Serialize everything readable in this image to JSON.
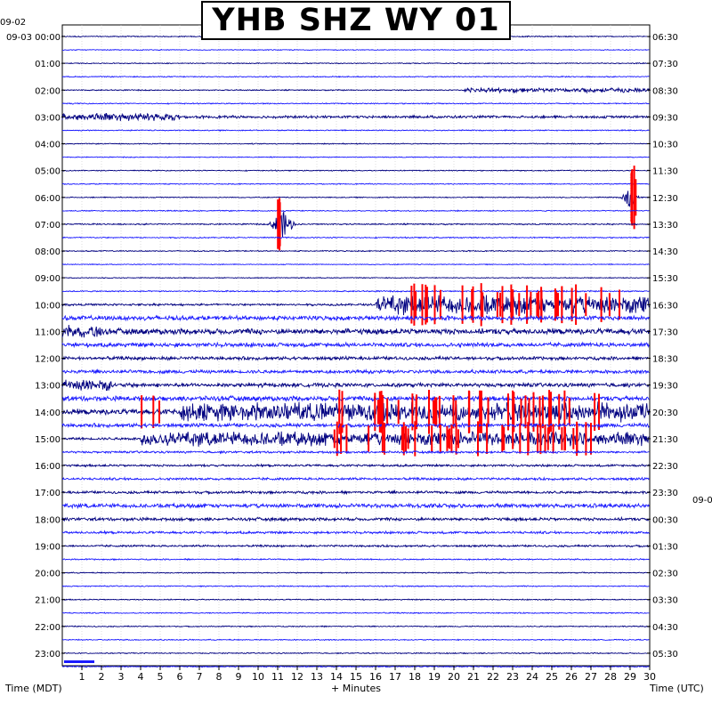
{
  "station_title": "YHB SHZ WY 01",
  "labels": {
    "left_start_date": "09-02",
    "right_next_date": "09-0",
    "x_axis_left": "Time (MDT)",
    "x_axis_center": "+ Minutes",
    "x_axis_right": "Time (UTC)"
  },
  "colors": {
    "trace_dark": "#000080",
    "trace_blue": "#1a1aff",
    "clipped": "#ff0000",
    "frame": "#000000",
    "background": "#ffffff"
  },
  "chart_data": {
    "type": "line",
    "title": "YHB SHZ WY 01",
    "xlabel": "+ Minutes",
    "ylabel_left": "Time (MDT)",
    "ylabel_right": "Time (UTC)",
    "xlim": [
      0,
      30
    ],
    "x_ticks": [
      1,
      2,
      3,
      4,
      5,
      6,
      7,
      8,
      9,
      10,
      11,
      12,
      13,
      14,
      15,
      16,
      17,
      18,
      19,
      20,
      21,
      22,
      23,
      24,
      25,
      26,
      27,
      28,
      29,
      30
    ],
    "left_ticks": [
      {
        "row": 0,
        "label": "09-03 00:00"
      },
      {
        "row": 2,
        "label": "01:00"
      },
      {
        "row": 4,
        "label": "02:00"
      },
      {
        "row": 6,
        "label": "03:00"
      },
      {
        "row": 8,
        "label": "04:00"
      },
      {
        "row": 10,
        "label": "05:00"
      },
      {
        "row": 12,
        "label": "06:00"
      },
      {
        "row": 14,
        "label": "07:00"
      },
      {
        "row": 16,
        "label": "08:00"
      },
      {
        "row": 18,
        "label": "09:00"
      },
      {
        "row": 20,
        "label": "10:00"
      },
      {
        "row": 22,
        "label": "11:00"
      },
      {
        "row": 24,
        "label": "12:00"
      },
      {
        "row": 26,
        "label": "13:00"
      },
      {
        "row": 28,
        "label": "14:00"
      },
      {
        "row": 30,
        "label": "15:00"
      },
      {
        "row": 32,
        "label": "16:00"
      },
      {
        "row": 34,
        "label": "17:00"
      },
      {
        "row": 36,
        "label": "18:00"
      },
      {
        "row": 38,
        "label": "19:00"
      },
      {
        "row": 40,
        "label": "20:00"
      },
      {
        "row": 42,
        "label": "21:00"
      },
      {
        "row": 44,
        "label": "22:00"
      },
      {
        "row": 46,
        "label": "23:00"
      }
    ],
    "right_ticks": [
      {
        "row": 0,
        "label": "06:30"
      },
      {
        "row": 2,
        "label": "07:30"
      },
      {
        "row": 4,
        "label": "08:30"
      },
      {
        "row": 6,
        "label": "09:30"
      },
      {
        "row": 8,
        "label": "10:30"
      },
      {
        "row": 10,
        "label": "11:30"
      },
      {
        "row": 12,
        "label": "12:30"
      },
      {
        "row": 14,
        "label": "13:30"
      },
      {
        "row": 16,
        "label": "14:30"
      },
      {
        "row": 18,
        "label": "15:30"
      },
      {
        "row": 20,
        "label": "16:30"
      },
      {
        "row": 22,
        "label": "17:30"
      },
      {
        "row": 24,
        "label": "18:30"
      },
      {
        "row": 26,
        "label": "19:30"
      },
      {
        "row": 28,
        "label": "20:30"
      },
      {
        "row": 30,
        "label": "21:30"
      },
      {
        "row": 32,
        "label": "22:30"
      },
      {
        "row": 34,
        "label": "23:30"
      },
      {
        "row": 36,
        "label": "00:30"
      },
      {
        "row": 38,
        "label": "01:30"
      },
      {
        "row": 40,
        "label": "02:30"
      },
      {
        "row": 42,
        "label": "03:30"
      },
      {
        "row": 44,
        "label": "04:30"
      },
      {
        "row": 46,
        "label": "05:30"
      }
    ],
    "rows_total": 48,
    "row_minutes": 30,
    "base_noise": [
      0.5,
      0.4,
      0.45,
      0.5,
      0.5,
      0.5,
      1.2,
      0.5,
      0.45,
      0.4,
      0.45,
      0.45,
      0.45,
      0.5,
      0.6,
      0.55,
      0.5,
      0.4,
      0.4,
      0.6,
      1.0,
      2.0,
      2.6,
      1.9,
      1.5,
      1.6,
      1.8,
      2.2,
      2.5,
      1.7,
      1.2,
      1.0,
      1.0,
      1.1,
      1.2,
      1.6,
      1.4,
      1.1,
      0.9,
      0.6,
      0.5,
      0.5,
      0.5,
      0.5,
      0.5,
      0.5,
      0.5,
      0.5
    ],
    "events": [
      {
        "row": 4,
        "start": 20.5,
        "end": 30,
        "amp": 3,
        "type": "burst"
      },
      {
        "row": 6,
        "start": 0,
        "end": 6,
        "amp": 5,
        "type": "burst"
      },
      {
        "row": 12,
        "start": 28.5,
        "end": 29.5,
        "amp": 12,
        "type": "quake"
      },
      {
        "row": 12,
        "start": 29,
        "end": 29.3,
        "amp": 40,
        "type": "quake",
        "clip": true
      },
      {
        "row": 14,
        "start": 10.5,
        "end": 12,
        "amp": 15,
        "type": "quake"
      },
      {
        "row": 14,
        "start": 11,
        "end": 11.3,
        "amp": 30,
        "type": "quake",
        "clip": true
      },
      {
        "row": 20,
        "start": 16,
        "end": 30,
        "amp": 12,
        "type": "burst"
      },
      {
        "row": 20,
        "start": 16.7,
        "end": 28.7,
        "amp": 25,
        "type": "spikes",
        "clip": true
      },
      {
        "row": 22,
        "start": 0,
        "end": 2,
        "amp": 8,
        "type": "burst"
      },
      {
        "row": 26,
        "start": 0,
        "end": 2.5,
        "amp": 8,
        "type": "burst"
      },
      {
        "row": 28,
        "start": 4,
        "end": 5,
        "amp": 20,
        "type": "spikes",
        "clip": true
      },
      {
        "row": 28,
        "start": 6,
        "end": 30,
        "amp": 12,
        "type": "burst"
      },
      {
        "row": 28,
        "start": 13.5,
        "end": 27.5,
        "amp": 25,
        "type": "spikes",
        "clip": true
      },
      {
        "row": 30,
        "start": 4,
        "end": 30,
        "amp": 9,
        "type": "burst"
      },
      {
        "row": 30,
        "start": 13.5,
        "end": 27.5,
        "amp": 20,
        "type": "spikes",
        "clip": true
      },
      {
        "row": 35,
        "start": 0,
        "end": 30,
        "amp": 2.5,
        "type": "burst"
      }
    ]
  }
}
